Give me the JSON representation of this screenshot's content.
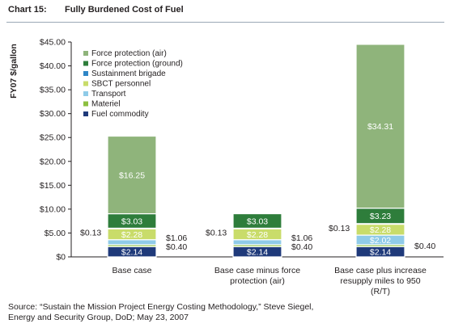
{
  "header": {
    "chart_number": "Chart 15:",
    "title": "Fully Burdened Cost of Fuel"
  },
  "source": {
    "line1": "Source: “Sustain the Mission Project Energy Costing Methodology,” Steve Siegel,",
    "line2": "Energy and Security Group, DoD; May 23, 2007"
  },
  "chart_data": {
    "type": "bar",
    "stacked": true,
    "title": "Fully Burdened Cost of Fuel",
    "ylabel": "FY07 $/gallon",
    "xlabel": "",
    "ylim": [
      0,
      45
    ],
    "yticks": [
      "$0",
      "$5.00",
      "$10.00",
      "$15.00",
      "$20.00",
      "$25.00",
      "$30.00",
      "$35.00",
      "$40.00",
      "$45.00"
    ],
    "categories": [
      [
        "Base case"
      ],
      [
        "Base case minus force",
        "protection (air)"
      ],
      [
        "Base case plus increase",
        "resupply miles to 950",
        "(R/T)"
      ]
    ],
    "legend_position": "top-left",
    "series": [
      {
        "name": "Fuel commodity",
        "color": "#1f3a7a",
        "values": [
          2.14,
          2.14,
          2.14
        ],
        "labels": [
          "$2.14",
          "$2.14",
          "$2.14"
        ],
        "label_side": [
          "inside",
          "inside",
          "inside"
        ]
      },
      {
        "name": "Materiel",
        "color": "#8cbf3f",
        "values": [
          0.4,
          0.4,
          0.4
        ],
        "labels": [
          "$0.40",
          "$0.40",
          "$0.40"
        ],
        "label_side": [
          "right",
          "right",
          "right"
        ]
      },
      {
        "name": "Transport",
        "color": "#8fcbe8",
        "values": [
          1.06,
          1.06,
          2.02
        ],
        "labels": [
          "$1.06",
          "$1.06",
          "$2.02"
        ],
        "label_side": [
          "right",
          "right",
          "inside"
        ]
      },
      {
        "name": "SBCT personnel",
        "color": "#c9dc6a",
        "values": [
          2.28,
          2.28,
          2.28
        ],
        "labels": [
          "$2.28",
          "$2.28",
          "$2.28"
        ],
        "label_side": [
          "inside",
          "inside",
          "inside"
        ]
      },
      {
        "name": "Sustainment brigade",
        "color": "#2f86c6",
        "values": [
          0.13,
          0.13,
          0.13
        ],
        "labels": [
          "$0.13",
          "$0.13",
          "$0.13"
        ],
        "label_side": [
          "left",
          "left",
          "left"
        ]
      },
      {
        "name": "Force protection (ground)",
        "color": "#2e7d3b",
        "values": [
          3.03,
          3.03,
          3.23
        ],
        "labels": [
          "$3.03",
          "$3.03",
          "$3.23"
        ],
        "label_side": [
          "inside",
          "inside",
          "inside"
        ]
      },
      {
        "name": "Force protection (air)",
        "color": "#8fb47b",
        "values": [
          16.25,
          0,
          34.31
        ],
        "labels": [
          "$16.25",
          "",
          "$34.31"
        ],
        "label_side": [
          "inside",
          "inside",
          "inside"
        ]
      }
    ],
    "legend_order": [
      "Force protection (air)",
      "Force protection (ground)",
      "Sustainment brigade",
      "SBCT personnel",
      "Transport",
      "Materiel",
      "Fuel commodity"
    ],
    "grid": false
  }
}
